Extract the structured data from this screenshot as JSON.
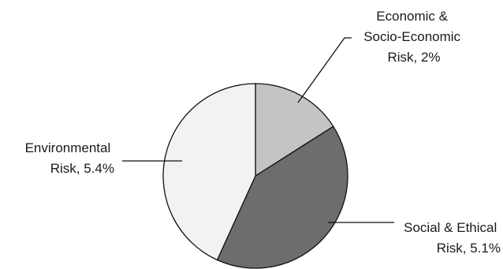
{
  "chart_data": {
    "type": "pie",
    "title": "",
    "slices": [
      {
        "name_lines": [
          "Economic &",
          "Socio-Economic",
          "Risk, 2%"
        ],
        "value": 2,
        "color": "#c4c4c4"
      },
      {
        "name_lines": [
          "Social & Ethical",
          "Risk, 5.1%"
        ],
        "value": 5.1,
        "color": "#6d6d6f"
      },
      {
        "name_lines": [
          "Environmental",
          "Risk, 5.4%"
        ],
        "value": 5.4,
        "color": "#f2f2f4"
      }
    ],
    "start_angle": "12 o'clock",
    "direction": "clockwise",
    "legend": "none (leader-line labels)"
  }
}
